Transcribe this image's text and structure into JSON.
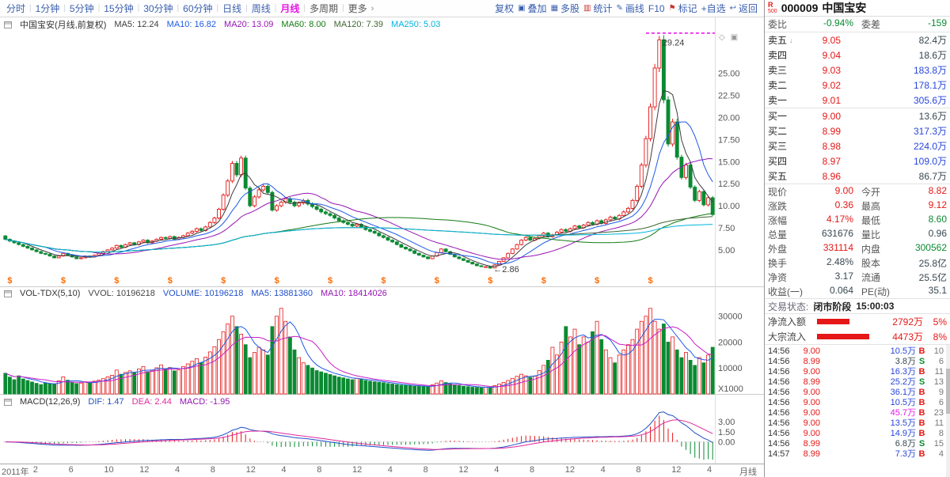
{
  "colors": {
    "up": "#e61717",
    "down": "#0a8a32",
    "blue": "#2846dc",
    "magenta": "#e619e6",
    "orange": "#ff6a00",
    "link": "#3a5fae"
  },
  "toolbar": {
    "periods": [
      "分时",
      "1分钟",
      "5分钟",
      "15分钟",
      "30分钟",
      "60分钟",
      "日线",
      "周线",
      "月线",
      "多周期",
      "更多"
    ],
    "active_period": "月线",
    "plain_periods": [
      "多周期",
      "更多"
    ],
    "more_chevron": "›",
    "right_buttons": [
      {
        "label": "复权"
      },
      {
        "label": "叠加",
        "icon": "▣",
        "icon_name": "overlay-icon",
        "icon_color": "#3a5fae"
      },
      {
        "label": "多股",
        "icon": "▦",
        "icon_name": "multi-stock-icon",
        "icon_color": "#3a5fae"
      },
      {
        "label": "统计",
        "icon": "▥",
        "icon_name": "stats-icon",
        "icon_color": "#c83232"
      },
      {
        "label": "画线",
        "icon": "✎",
        "icon_name": "draw-line-icon",
        "icon_color": "#3a5fae"
      },
      {
        "label": "F10"
      },
      {
        "label": "标记",
        "icon": "⚑",
        "icon_name": "flag-icon",
        "icon_color": "#c83232"
      },
      {
        "label": "+自选"
      },
      {
        "label": "返回",
        "icon": "↩",
        "icon_name": "back-icon",
        "icon_color": "#3a5fae"
      }
    ]
  },
  "price_pane": {
    "title": "中国宝安(月线,前复权)",
    "ma_items": [
      {
        "text": "MA5: 12.24",
        "color": "#3c3c3c"
      },
      {
        "text": "MA10: 16.82",
        "color": "#1e5ae6"
      },
      {
        "text": "MA20: 13.09",
        "color": "#9614b4"
      },
      {
        "text": "MA60: 8.00",
        "color": "#127a12"
      },
      {
        "text": "MA120: 7.39",
        "color": "#3f6632"
      },
      {
        "text": "MA250: 5.03",
        "color": "#00b4dc"
      }
    ]
  },
  "vol_pane": {
    "title": "VOL-TDX(5,10)",
    "fields": [
      {
        "text": "VVOL: 10196218",
        "color": "#444444"
      },
      {
        "text": "VOLUME: 10196218",
        "color": "#2050c8"
      },
      {
        "text": "MA5: 13881360",
        "color": "#2050c8"
      },
      {
        "text": "MA10: 18414026",
        "color": "#9614b4"
      }
    ]
  },
  "macd_pane": {
    "title": "MACD(12,26,9)",
    "fields": [
      {
        "text": "DIF: 1.47",
        "color": "#2050c8"
      },
      {
        "text": "DEA: 2.44",
        "color": "#e0289b"
      },
      {
        "text": "MACD: -1.95",
        "color": "#9614b4"
      }
    ]
  },
  "chart_data": {
    "type": "candlestick",
    "title": "中国宝安 月线(前复权)",
    "period": "月线",
    "closes": [
      6.2,
      6.0,
      5.8,
      5.6,
      5.4,
      5.2,
      5.0,
      4.8,
      4.6,
      4.5,
      4.3,
      4.1,
      4.3,
      4.6,
      4.4,
      4.2,
      4.0,
      4.1,
      4.3,
      4.2,
      4.4,
      4.6,
      4.8,
      5.0,
      5.2,
      5.5,
      5.3,
      5.6,
      5.8,
      5.6,
      5.9,
      6.1,
      5.8,
      6.0,
      6.2,
      6.4,
      6.3,
      6.5,
      6.2,
      6.4,
      6.6,
      6.9,
      7.1,
      7.4,
      7.2,
      7.6,
      8.1,
      8.6,
      9.6,
      11.2,
      12.8,
      14.8,
      13.5,
      15.4,
      12.0,
      10.0,
      11.0,
      11.8,
      12.2,
      11.5,
      9.5,
      10.0,
      10.4,
      10.8,
      10.4,
      10.0,
      10.3,
      10.6,
      10.2,
      9.9,
      9.6,
      9.3,
      9.1,
      8.9,
      8.6,
      8.3,
      8.1,
      7.9,
      7.7,
      7.9,
      7.6,
      7.3,
      7.1,
      6.9,
      6.6,
      6.4,
      6.1,
      5.9,
      5.6,
      5.3,
      5.1,
      4.9,
      4.6,
      4.4,
      4.2,
      4.0,
      4.3,
      4.7,
      5.1,
      4.8,
      4.5,
      4.2,
      4.0,
      3.8,
      3.6,
      3.4,
      3.2,
      3.1,
      3.1,
      2.95,
      3.3,
      3.7,
      4.1,
      4.6,
      5.1,
      5.6,
      6.1,
      6.4,
      6.1,
      6.3,
      6.6,
      6.9,
      6.5,
      6.7,
      7.0,
      7.3,
      7.1,
      7.4,
      7.7,
      7.5,
      7.8,
      8.1,
      7.9,
      8.3,
      8.0,
      8.4,
      8.7,
      8.5,
      8.9,
      9.3,
      9.7,
      10.6,
      12.2,
      14.6,
      17.6,
      21.2,
      25.6,
      28.8,
      22.0,
      17.0,
      19.5,
      15.5,
      13.2,
      14.6,
      12.1,
      10.6,
      11.6,
      10.1,
      10.9,
      9.0
    ],
    "volumes": [
      8000,
      6500,
      5500,
      7000,
      5800,
      5200,
      4600,
      4100,
      3600,
      4300,
      3900,
      3700,
      5100,
      6600,
      5300,
      4400,
      4000,
      4200,
      4700,
      4300,
      4900,
      5300,
      5900,
      6600,
      7200,
      9200,
      7600,
      8300,
      8900,
      8100,
      9600,
      10600,
      8600,
      9100,
      10100,
      11200,
      9600,
      10200,
      8900,
      9300,
      10600,
      11600,
      12600,
      13600,
      12100,
      14200,
      16200,
      18200,
      21000,
      24000,
      27000,
      30000,
      26000,
      23000,
      19000,
      14000,
      16000,
      18000,
      17000,
      15000,
      26000,
      30000,
      33000,
      28000,
      22000,
      17000,
      14000,
      12000,
      11000,
      10000,
      9000,
      8500,
      8000,
      7500,
      7000,
      6500,
      6200,
      5800,
      5500,
      6000,
      5600,
      5200,
      4900,
      4700,
      4500,
      4300,
      4000,
      3800,
      3600,
      3400,
      3300,
      3200,
      3000,
      2900,
      2800,
      2700,
      3500,
      4200,
      5000,
      4400,
      3900,
      3500,
      3200,
      3000,
      2800,
      2600,
      2500,
      2400,
      2600,
      2500,
      3200,
      3800,
      4400,
      5200,
      6000,
      6800,
      7600,
      7000,
      6400,
      6800,
      9000,
      11000,
      13000,
      18000,
      15000,
      20000,
      26000,
      22000,
      25000,
      19000,
      22000,
      20000,
      24000,
      28000,
      21000,
      17000,
      14000,
      12000,
      15000,
      17000,
      19000,
      21000,
      25000,
      28000,
      30000,
      33000,
      28000,
      25000,
      27000,
      20000,
      22000,
      17000,
      14000,
      16000,
      13000,
      11000,
      14000,
      12000,
      15000,
      18000
    ],
    "spikes": [
      {
        "i": 147,
        "high": 29.24
      },
      {
        "i": 109,
        "low": 2.86
      }
    ],
    "annotations": [
      {
        "i": 147,
        "text": "29.24",
        "at": "high"
      },
      {
        "i": 109,
        "text": "←2.86",
        "at": "low"
      }
    ],
    "marker_line": {
      "from_i": 144,
      "price": 29.55,
      "color": "#f03cf0"
    },
    "dollar_marks": [
      1,
      13,
      25,
      37,
      49,
      61,
      73,
      85,
      97,
      109,
      121,
      133,
      145
    ],
    "price_axis": {
      "min": 2.3,
      "max": 29.9,
      "gridlines": [
        25,
        22.5,
        20,
        17.5,
        15,
        12.5,
        10,
        7.5,
        5
      ]
    },
    "vol_axis": {
      "max": 36000,
      "gridlines": [
        30000,
        20000,
        10000
      ],
      "unit_label": "X1000"
    },
    "macd_axis": {
      "gridlines": [
        3,
        1.5,
        0
      ]
    },
    "ma": [
      {
        "p": 5,
        "color": "#3c3c3c"
      },
      {
        "p": 10,
        "color": "#1e5ae6"
      },
      {
        "p": 20,
        "color": "#9614b4"
      },
      {
        "p": 60,
        "color": "#127a12"
      },
      {
        "p": 120,
        "color": "#3f6632"
      },
      {
        "p": 250,
        "color": "#00b4dc"
      }
    ],
    "vol_ma": [
      {
        "p": 5,
        "color": "#1e5ae6"
      },
      {
        "p": 10,
        "color": "#c81ec8"
      }
    ],
    "macd_params": [
      12,
      26,
      9
    ],
    "macd_colors": {
      "dif": "#2050c8",
      "dea": "#e0289b"
    },
    "x_labels": [
      "2011年",
      "2",
      "6",
      "10",
      "12",
      "4",
      "8",
      "12",
      "4",
      "8",
      "12",
      "4",
      "8",
      "12",
      "4",
      "8",
      "12",
      "4",
      "8",
      "12",
      "4"
    ],
    "x_right_label": "月线"
  },
  "panel": {
    "header": {
      "flag1": "R",
      "flag2": "500",
      "code": "000009",
      "name": "中国宝安"
    },
    "weibi_row": [
      "委比",
      "-0.94%",
      "g",
      "委差",
      "-159",
      "g"
    ],
    "asks": [
      [
        "卖五",
        "9.05",
        "82.4万"
      ],
      [
        "卖四",
        "9.04",
        "18.6万"
      ],
      [
        "卖三",
        "9.03",
        "183.8万"
      ],
      [
        "卖二",
        "9.02",
        "178.1万"
      ],
      [
        "卖一",
        "9.01",
        "305.6万"
      ]
    ],
    "bids": [
      [
        "买一",
        "9.00",
        "13.6万"
      ],
      [
        "买二",
        "8.99",
        "317.3万"
      ],
      [
        "买三",
        "8.98",
        "224.0万"
      ],
      [
        "买四",
        "8.97",
        "109.0万"
      ],
      [
        "买五",
        "8.96",
        "86.7万"
      ]
    ],
    "stats": [
      [
        "现价",
        "9.00",
        "r",
        "今开",
        "8.82",
        "r"
      ],
      [
        "涨跌",
        "0.36",
        "r",
        "最高",
        "9.12",
        "r"
      ],
      [
        "涨幅",
        "4.17%",
        "r",
        "最低",
        "8.60",
        "g"
      ],
      [
        "总量",
        "631676",
        "k",
        "量比",
        "0.96",
        "k"
      ],
      [
        "外盘",
        "331114",
        "r",
        "内盘",
        "300562",
        "g"
      ],
      [
        "换手",
        "2.48%",
        "k",
        "股本",
        "25.8亿",
        "k"
      ],
      [
        "净资",
        "3.17",
        "k",
        "流通",
        "25.5亿",
        "k"
      ],
      [
        "收益(一)",
        "0.064",
        "k",
        "PE(动)",
        "35.1",
        "k"
      ]
    ],
    "status": {
      "label": "交易状态:",
      "value": "闭市阶段",
      "time": "15:00:03"
    },
    "flows": [
      {
        "label": "净流入额",
        "value": "2792万",
        "pct": "5%",
        "num": 2792
      },
      {
        "label": "大宗流入",
        "value": "4473万",
        "pct": "8%",
        "num": 4473
      }
    ],
    "ticks": [
      {
        "t": "14:56",
        "p": "9.00",
        "pc": "r",
        "v": "10.5万",
        "vc": "b",
        "bs": "B",
        "n": "10"
      },
      {
        "t": "14:56",
        "p": "8.99",
        "pc": "r",
        "v": "3.8万",
        "vc": "k",
        "bs": "S",
        "n": "6"
      },
      {
        "t": "14:56",
        "p": "9.00",
        "pc": "r",
        "v": "16.3万",
        "vc": "b",
        "bs": "B",
        "n": "11"
      },
      {
        "t": "14:56",
        "p": "8.99",
        "pc": "r",
        "v": "25.2万",
        "vc": "b",
        "bs": "S",
        "n": "13"
      },
      {
        "t": "14:56",
        "p": "9.00",
        "pc": "r",
        "v": "36.1万",
        "vc": "b",
        "bs": "B",
        "n": "9"
      },
      {
        "t": "14:56",
        "p": "9.00",
        "pc": "r",
        "v": "10.5万",
        "vc": "b",
        "bs": "B",
        "n": "6"
      },
      {
        "t": "14:56",
        "p": "9.00",
        "pc": "r",
        "v": "45.7万",
        "vc": "m",
        "bs": "B",
        "n": "23"
      },
      {
        "t": "14:56",
        "p": "9.00",
        "pc": "r",
        "v": "13.5万",
        "vc": "b",
        "bs": "B",
        "n": "11"
      },
      {
        "t": "14:56",
        "p": "9.00",
        "pc": "r",
        "v": "14.9万",
        "vc": "b",
        "bs": "B",
        "n": "8"
      },
      {
        "t": "14:56",
        "p": "8.99",
        "pc": "r",
        "v": "6.8万",
        "vc": "k",
        "bs": "S",
        "n": "15"
      },
      {
        "t": "14:57",
        "p": "8.99",
        "pc": "r",
        "v": "7.3万",
        "vc": "b",
        "bs": "B",
        "n": "4"
      }
    ]
  }
}
